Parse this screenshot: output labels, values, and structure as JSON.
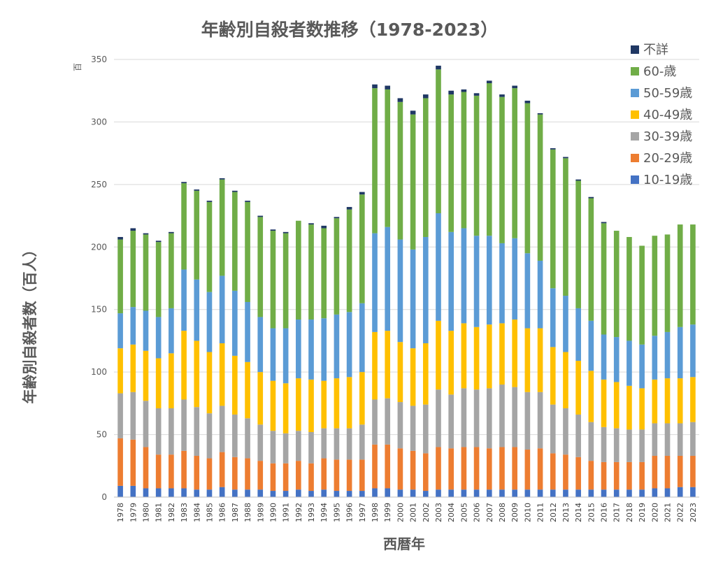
{
  "chart_data": {
    "type": "bar",
    "stacked": true,
    "title": "年齢別自殺者数推移（1978-2023）",
    "xlabel": "西暦年",
    "ylabel": "年齢別自殺者数（百人）",
    "yunit": "百",
    "ylim": [
      0,
      350
    ],
    "yticks": [
      0,
      50,
      100,
      150,
      200,
      250,
      300,
      350
    ],
    "grid": true,
    "legend_position": "right",
    "categories": [
      "1978",
      "1979",
      "1980",
      "1981",
      "1982",
      "1983",
      "1984",
      "1985",
      "1986",
      "1987",
      "1988",
      "1989",
      "1990",
      "1991",
      "1992",
      "1993",
      "1994",
      "1995",
      "1996",
      "1997",
      "1998",
      "1999",
      "2000",
      "2001",
      "2002",
      "2003",
      "2004",
      "2005",
      "2006",
      "2007",
      "2008",
      "2009",
      "2010",
      "2011",
      "2012",
      "2013",
      "2014",
      "2015",
      "2016",
      "2017",
      "2018",
      "2019",
      "2020",
      "2021",
      "2022",
      "2023"
    ],
    "series": [
      {
        "name": "10-19歳",
        "color": "#4472C4",
        "values": [
          9,
          9,
          7,
          7,
          7,
          7,
          6,
          6,
          8,
          6,
          6,
          6,
          5,
          5,
          6,
          5,
          6,
          5,
          5,
          5,
          7,
          7,
          6,
          6,
          5,
          6,
          6,
          6,
          6,
          6,
          6,
          6,
          6,
          6,
          6,
          6,
          6,
          6,
          6,
          6,
          6,
          6,
          7,
          7,
          8,
          8
        ]
      },
      {
        "name": "20-29歳",
        "color": "#ED7D31",
        "values": [
          38,
          37,
          33,
          27,
          27,
          30,
          27,
          25,
          28,
          26,
          25,
          23,
          22,
          22,
          23,
          22,
          25,
          25,
          25,
          25,
          35,
          35,
          33,
          31,
          30,
          34,
          33,
          34,
          34,
          33,
          34,
          34,
          32,
          33,
          29,
          28,
          26,
          23,
          22,
          22,
          22,
          22,
          26,
          26,
          25,
          25
        ]
      },
      {
        "name": "30-39歳",
        "color": "#A5A5A5",
        "values": [
          36,
          38,
          37,
          37,
          37,
          41,
          39,
          36,
          37,
          34,
          32,
          29,
          26,
          24,
          24,
          25,
          24,
          25,
          25,
          28,
          36,
          37,
          37,
          36,
          39,
          46,
          43,
          47,
          46,
          48,
          50,
          48,
          46,
          45,
          39,
          37,
          34,
          31,
          28,
          27,
          26,
          26,
          26,
          26,
          26,
          27
        ]
      },
      {
        "name": "40-49歳",
        "color": "#FFC000",
        "values": [
          36,
          38,
          40,
          40,
          44,
          55,
          53,
          49,
          50,
          47,
          45,
          42,
          40,
          40,
          42,
          42,
          38,
          40,
          41,
          42,
          54,
          54,
          48,
          46,
          49,
          55,
          51,
          52,
          50,
          51,
          49,
          54,
          51,
          51,
          46,
          45,
          43,
          41,
          38,
          37,
          35,
          33,
          35,
          36,
          36,
          36
        ]
      },
      {
        "name": "50-59歳",
        "color": "#5B9BD5",
        "values": [
          28,
          30,
          32,
          33,
          36,
          49,
          49,
          48,
          54,
          52,
          48,
          44,
          42,
          44,
          47,
          48,
          50,
          51,
          52,
          55,
          79,
          83,
          82,
          79,
          85,
          86,
          79,
          76,
          73,
          71,
          64,
          65,
          60,
          54,
          47,
          45,
          42,
          40,
          36,
          36,
          36,
          35,
          35,
          37,
          41,
          42
        ]
      },
      {
        "name": "60-歳",
        "color": "#70AD47",
        "values": [
          59,
          61,
          61,
          60,
          60,
          69,
          71,
          72,
          77,
          79,
          80,
          80,
          78,
          76,
          79,
          76,
          72,
          77,
          82,
          87,
          116,
          110,
          110,
          108,
          111,
          115,
          110,
          109,
          112,
          122,
          117,
          120,
          120,
          117,
          111,
          110,
          102,
          98,
          89,
          85,
          83,
          79,
          80,
          78,
          82,
          80
        ]
      },
      {
        "name": "不詳",
        "color": "#203864",
        "values": [
          2,
          2,
          1,
          1,
          1,
          1,
          1,
          1,
          1,
          1,
          1,
          1,
          1,
          1,
          0,
          1,
          2,
          1,
          2,
          2,
          3,
          3,
          3,
          3,
          3,
          3,
          3,
          2,
          2,
          2,
          2,
          2,
          2,
          1,
          1,
          1,
          1,
          1,
          1,
          0,
          0,
          0,
          0,
          0,
          0,
          0
        ]
      }
    ]
  }
}
